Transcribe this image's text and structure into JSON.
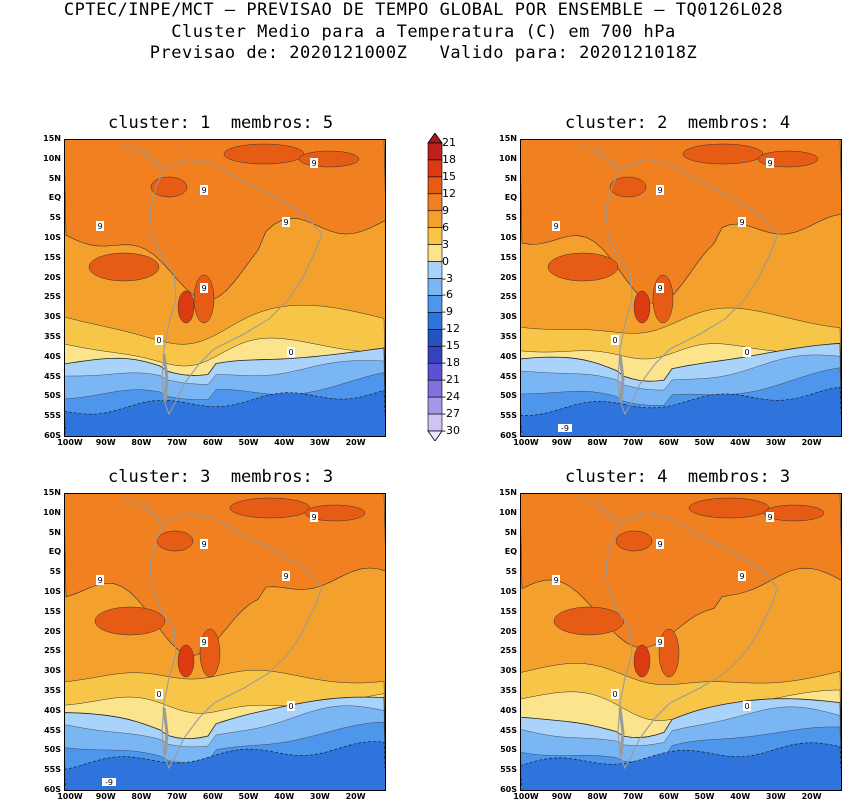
{
  "header": {
    "line1": "CPTEC/INPE/MCT – PREVISAO DE TEMPO GLOBAL POR ENSEMBLE – TQ0126L028",
    "line2": "Cluster Medio para a Temperatura (C) em 700 hPa",
    "line3": "Previsao de: 2020121000Z   Valido para: 2020121018Z"
  },
  "panels": [
    {
      "title": "cluster: 1  membros: 5"
    },
    {
      "title": "cluster: 2  membros: 4"
    },
    {
      "title": "cluster: 3  membros: 3"
    },
    {
      "title": "cluster: 4  membros: 3"
    }
  ],
  "lat_labels": [
    "15N",
    "10N",
    "5N",
    "EQ",
    "5S",
    "10S",
    "15S",
    "20S",
    "25S",
    "30S",
    "35S",
    "40S",
    "45S",
    "50S",
    "55S",
    "60S"
  ],
  "lon_labels": [
    "100W",
    "90W",
    "80W",
    "70W",
    "60W",
    "50W",
    "40W",
    "30W",
    "20W"
  ],
  "colorbar": {
    "levels": [
      "21",
      "18",
      "15",
      "12",
      "9",
      "6",
      "3",
      "0",
      "-3",
      "-6",
      "-9",
      "-12",
      "-15",
      "-18",
      "-21",
      "-24",
      "-27",
      "-30"
    ],
    "colors": [
      "#a11a1a",
      "#c01f1f",
      "#dc3b12",
      "#e65c14",
      "#f08020",
      "#f3a12c",
      "#f7c648",
      "#fbe48c",
      "#a9d3fb",
      "#7bb6f4",
      "#4e95ec",
      "#2f74dc",
      "#2553c0",
      "#3441c0",
      "#5a52d2",
      "#8170de",
      "#a797ea",
      "#cfc3f3",
      "#ece6fa"
    ]
  },
  "contour_labels": {
    "nine": "9",
    "zero": "0",
    "minus_nine": "-9"
  }
}
